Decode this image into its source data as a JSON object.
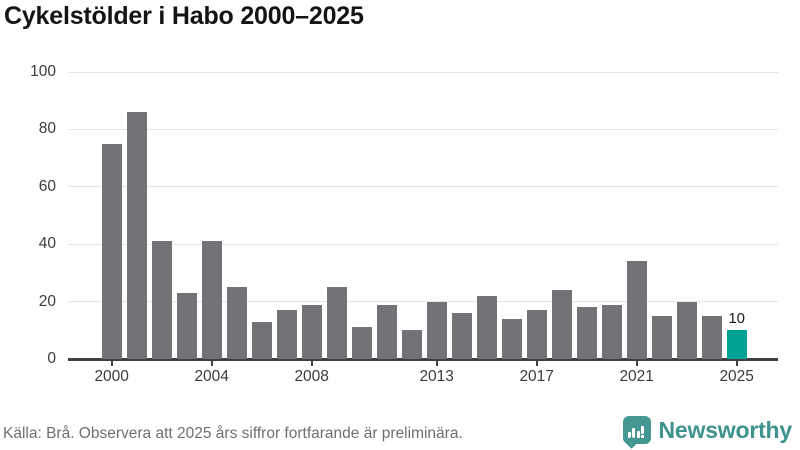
{
  "title": "Cykelstölder i Habo 2000–2025",
  "footer": {
    "source_note": "Källa: Brå. Observera att 2025 års siffror fortfarande är preliminära.",
    "brand": "Newsworthy"
  },
  "colors": {
    "bar": "#727277",
    "highlight": "#00a294",
    "gridline": "#e4e4e4",
    "axis_line": "#3f3f44",
    "brand_teal": "#459792",
    "brand_text": "#3e938e"
  },
  "chart_data": {
    "type": "bar",
    "title": "Cykelstölder i Habo 2000–2025",
    "categories": [
      2000,
      2001,
      2002,
      2003,
      2004,
      2005,
      2006,
      2007,
      2008,
      2009,
      2010,
      2011,
      2012,
      2013,
      2014,
      2015,
      2016,
      2017,
      2018,
      2019,
      2020,
      2021,
      2022,
      2023,
      2024,
      2025
    ],
    "values": [
      75,
      86,
      41,
      23,
      41,
      25,
      13,
      17,
      19,
      25,
      11,
      19,
      10,
      20,
      16,
      22,
      14,
      17,
      24,
      18,
      19,
      34,
      15,
      20,
      15,
      10
    ],
    "highlight_index": 25,
    "highlight_label": "10",
    "x_tick_labels": [
      "2000",
      "2004",
      "2008",
      "2013",
      "2017",
      "2021",
      "2025"
    ],
    "x_tick_indices": [
      0,
      4,
      8,
      13,
      17,
      21,
      25
    ],
    "y_ticks": [
      0,
      20,
      40,
      60,
      80,
      100
    ],
    "ylim": [
      0,
      100
    ],
    "grid": "horizontal",
    "legend": "none",
    "xlabel": "",
    "ylabel": ""
  }
}
